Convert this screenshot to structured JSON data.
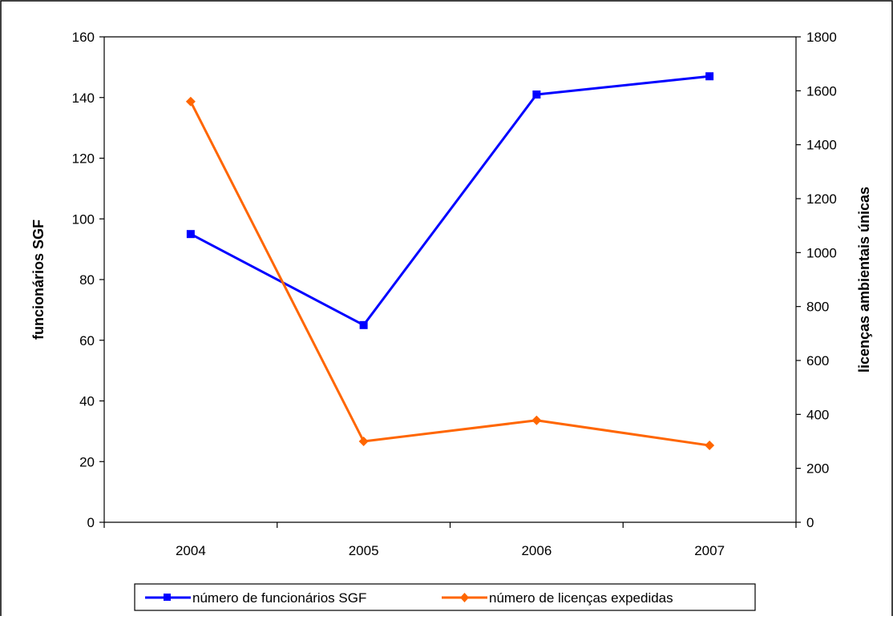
{
  "chart_data": {
    "type": "line",
    "title": "",
    "categories": [
      "2004",
      "2005",
      "2006",
      "2007"
    ],
    "y_left": {
      "label": "funcionários SGF",
      "range": [
        0,
        160
      ],
      "ticks": [
        "0",
        "20",
        "40",
        "60",
        "80",
        "100",
        "120",
        "140",
        "160"
      ]
    },
    "y_right": {
      "label": "licenças ambientais únicas",
      "range": [
        0,
        1800
      ],
      "ticks": [
        "0",
        "200",
        "400",
        "600",
        "800",
        "1000",
        "1200",
        "1400",
        "1600",
        "1800"
      ]
    },
    "series": [
      {
        "name": "número de funcionários SGF",
        "axis": "left",
        "color": "#0000ff",
        "marker": "square",
        "values": [
          95,
          65,
          141,
          147
        ]
      },
      {
        "name": "número de licenças expedidas",
        "axis": "right",
        "color": "#ff6600",
        "marker": "diamond",
        "values": [
          1560,
          300,
          378,
          285
        ]
      }
    ],
    "legend": "bottom",
    "grid": false
  }
}
